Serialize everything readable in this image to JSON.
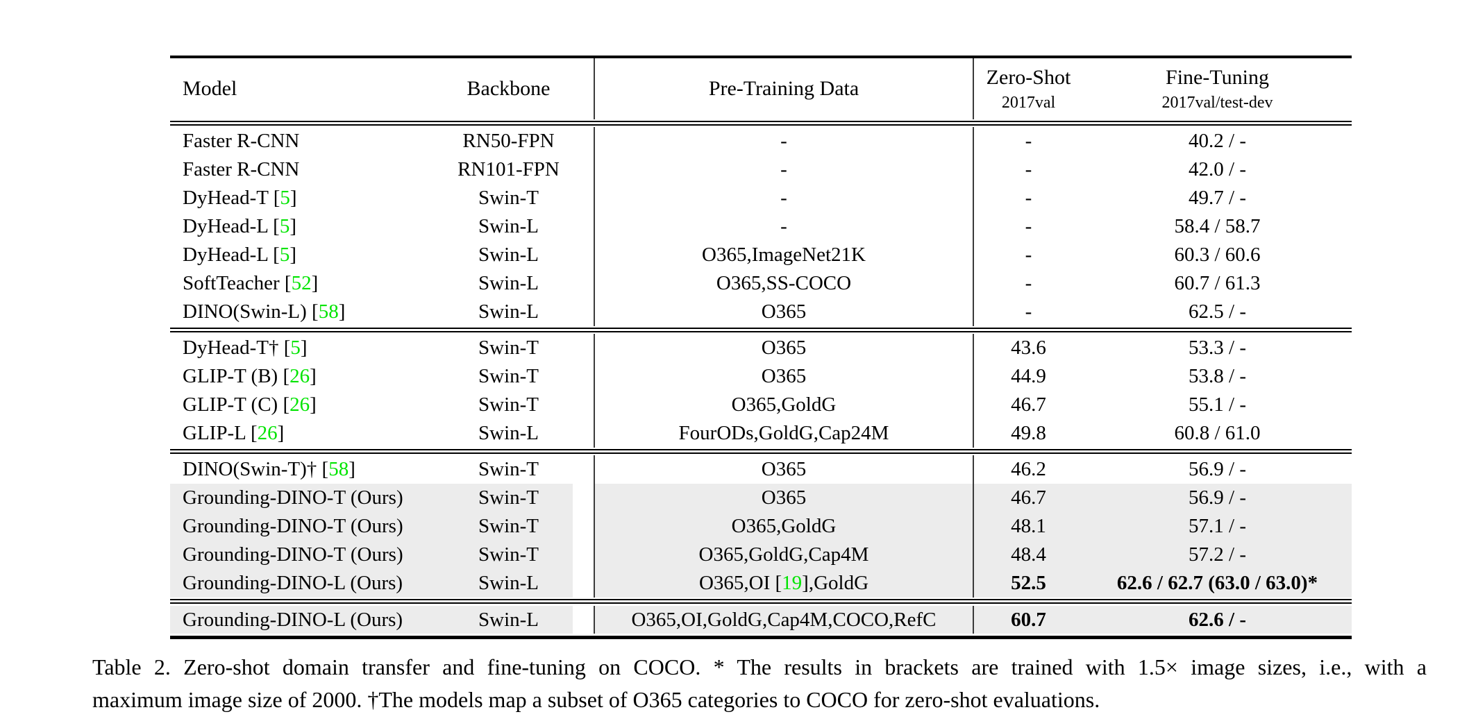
{
  "colors": {
    "highlight": "#ececec",
    "citation": "#00e400",
    "divider": "#3a3a3a"
  },
  "table": {
    "header": {
      "model": "Model",
      "backbone": "Backbone",
      "pretrain": "Pre-Training Data",
      "zeroshot_line1": "Zero-Shot",
      "zeroshot_line2": "2017val",
      "finetune_line1": "Fine-Tuning",
      "finetune_line2": "2017val/test-dev"
    },
    "blocks": [
      {
        "rows": [
          {
            "model": [
              {
                "t": "Faster R-CNN"
              }
            ],
            "backbone": "RN50-FPN",
            "pretrain": [
              {
                "t": "-"
              }
            ],
            "zs": "-",
            "ft": "40.2 / -",
            "hl": false,
            "bold": false
          },
          {
            "model": [
              {
                "t": "Faster R-CNN"
              }
            ],
            "backbone": "RN101-FPN",
            "pretrain": [
              {
                "t": "-"
              }
            ],
            "zs": "-",
            "ft": "42.0 / -",
            "hl": false,
            "bold": false
          },
          {
            "model": [
              {
                "t": "DyHead-T ["
              },
              {
                "t": "5",
                "c": true
              },
              {
                "t": "]"
              }
            ],
            "backbone": "Swin-T",
            "pretrain": [
              {
                "t": "-"
              }
            ],
            "zs": "-",
            "ft": "49.7 / -",
            "hl": false,
            "bold": false
          },
          {
            "model": [
              {
                "t": "DyHead-L ["
              },
              {
                "t": "5",
                "c": true
              },
              {
                "t": "]"
              }
            ],
            "backbone": "Swin-L",
            "pretrain": [
              {
                "t": "-"
              }
            ],
            "zs": "-",
            "ft": "58.4 / 58.7",
            "hl": false,
            "bold": false
          },
          {
            "model": [
              {
                "t": "DyHead-L ["
              },
              {
                "t": "5",
                "c": true
              },
              {
                "t": "]"
              }
            ],
            "backbone": "Swin-L",
            "pretrain": [
              {
                "t": "O365,ImageNet21K"
              }
            ],
            "zs": "-",
            "ft": "60.3 / 60.6",
            "hl": false,
            "bold": false
          },
          {
            "model": [
              {
                "t": "SoftTeacher ["
              },
              {
                "t": "52",
                "c": true
              },
              {
                "t": "]"
              }
            ],
            "backbone": "Swin-L",
            "pretrain": [
              {
                "t": "O365,SS-COCO"
              }
            ],
            "zs": "-",
            "ft": "60.7 / 61.3",
            "hl": false,
            "bold": false
          },
          {
            "model": [
              {
                "t": "DINO(Swin-L) ["
              },
              {
                "t": "58",
                "c": true
              },
              {
                "t": "]"
              }
            ],
            "backbone": "Swin-L",
            "pretrain": [
              {
                "t": "O365"
              }
            ],
            "zs": "-",
            "ft": "62.5 / -",
            "hl": false,
            "bold": false
          }
        ]
      },
      {
        "rows": [
          {
            "model": [
              {
                "t": "DyHead-T† ["
              },
              {
                "t": "5",
                "c": true
              },
              {
                "t": "]"
              }
            ],
            "backbone": "Swin-T",
            "pretrain": [
              {
                "t": "O365"
              }
            ],
            "zs": "43.6",
            "ft": "53.3 / -",
            "hl": false,
            "bold": false
          },
          {
            "model": [
              {
                "t": "GLIP-T (B) ["
              },
              {
                "t": "26",
                "c": true
              },
              {
                "t": "]"
              }
            ],
            "backbone": "Swin-T",
            "pretrain": [
              {
                "t": "O365"
              }
            ],
            "zs": "44.9",
            "ft": "53.8 / -",
            "hl": false,
            "bold": false
          },
          {
            "model": [
              {
                "t": "GLIP-T (C) ["
              },
              {
                "t": "26",
                "c": true
              },
              {
                "t": "]"
              }
            ],
            "backbone": "Swin-T",
            "pretrain": [
              {
                "t": "O365,GoldG"
              }
            ],
            "zs": "46.7",
            "ft": "55.1 / -",
            "hl": false,
            "bold": false
          },
          {
            "model": [
              {
                "t": "GLIP-L ["
              },
              {
                "t": "26",
                "c": true
              },
              {
                "t": "]"
              }
            ],
            "backbone": "Swin-L",
            "pretrain": [
              {
                "t": "FourODs,GoldG,Cap24M"
              }
            ],
            "zs": "49.8",
            "ft": "60.8 / 61.0",
            "hl": false,
            "bold": false
          }
        ]
      },
      {
        "rows": [
          {
            "model": [
              {
                "t": "DINO(Swin-T)† ["
              },
              {
                "t": "58",
                "c": true
              },
              {
                "t": "]"
              }
            ],
            "backbone": "Swin-T",
            "pretrain": [
              {
                "t": "O365"
              }
            ],
            "zs": "46.2",
            "ft": "56.9 / -",
            "hl": false,
            "bold": false
          },
          {
            "model": [
              {
                "t": "Grounding-DINO-T (Ours)"
              }
            ],
            "backbone": "Swin-T",
            "pretrain": [
              {
                "t": "O365"
              }
            ],
            "zs": "46.7",
            "ft": "56.9 / -",
            "hl": true,
            "bold": false
          },
          {
            "model": [
              {
                "t": "Grounding-DINO-T (Ours)"
              }
            ],
            "backbone": "Swin-T",
            "pretrain": [
              {
                "t": "O365,GoldG"
              }
            ],
            "zs": "48.1",
            "ft": "57.1 / -",
            "hl": true,
            "bold": false
          },
          {
            "model": [
              {
                "t": "Grounding-DINO-T (Ours)"
              }
            ],
            "backbone": "Swin-T",
            "pretrain": [
              {
                "t": "O365,GoldG,Cap4M"
              }
            ],
            "zs": "48.4",
            "ft": "57.2 / -",
            "hl": true,
            "bold": false
          },
          {
            "model": [
              {
                "t": "Grounding-DINO-L (Ours)"
              }
            ],
            "backbone": "Swin-L",
            "pretrain": [
              {
                "t": "O365,OI ["
              },
              {
                "t": "19",
                "c": true
              },
              {
                "t": "],GoldG"
              }
            ],
            "zs": "52.5",
            "ft": "62.6 / 62.7 (63.0 / 63.0)*",
            "hl": true,
            "bold": true
          }
        ]
      },
      {
        "rows": [
          {
            "model": [
              {
                "t": "Grounding-DINO-L (Ours)"
              }
            ],
            "backbone": "Swin-L",
            "pretrain": [
              {
                "t": "O365,OI,GoldG,Cap4M,COCO,RefC"
              }
            ],
            "zs": "60.7",
            "ft": "62.6 / -",
            "hl": true,
            "bold": true
          }
        ]
      }
    ]
  },
  "caption": {
    "line1": "Table 2.  Zero-shot domain transfer and fine-tuning on COCO. * The results in brackets are trained with 1.5× image sizes, i.e., with a",
    "line2": "maximum image size of 2000. †The models map a subset of O365 categories to COCO for zero-shot evaluations."
  }
}
